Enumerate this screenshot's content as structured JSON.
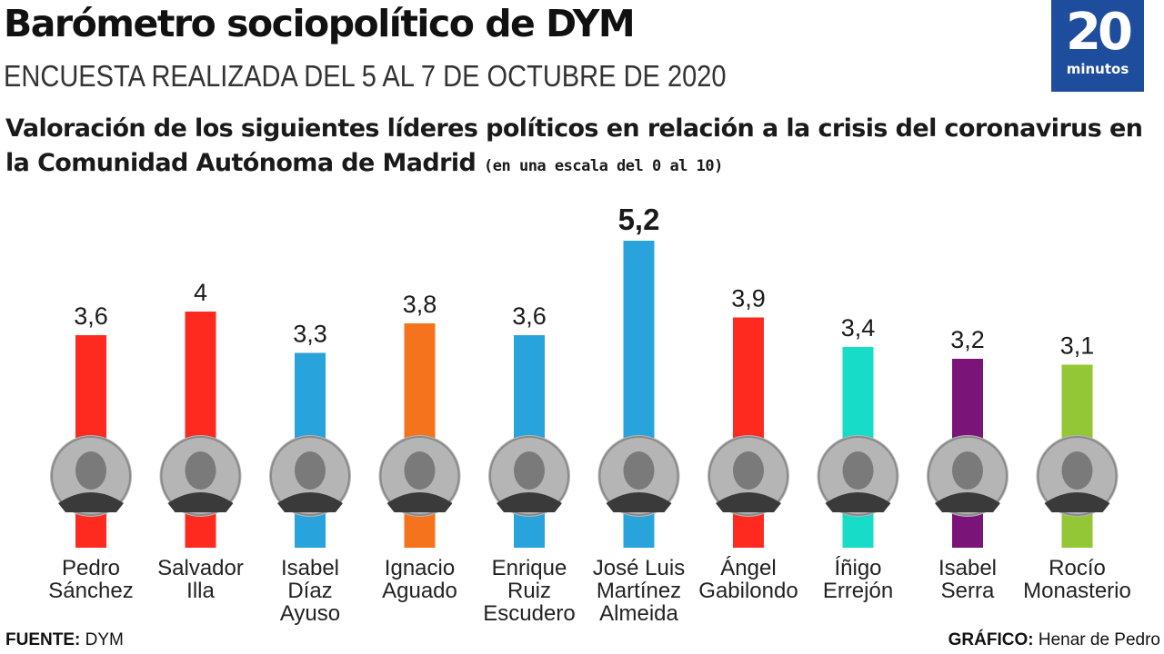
{
  "header": {
    "title": "Barómetro sociopolítico de DYM",
    "subtitle": "ENCUESTA REALIZADA DEL 5 AL 7 DE OCTUBRE DE 2020"
  },
  "logo": {
    "number": "20",
    "word": "minutos",
    "color": "#1f4d9d"
  },
  "question": {
    "text": "Valoración de los siguientes líderes políticos en relación a la crisis del coronavirus en la Comunidad Autónoma de Madrid",
    "scale_note": "(en una escala del 0 al 10)"
  },
  "chart_data": {
    "type": "bar",
    "categories": [
      [
        "Pedro",
        "Sánchez"
      ],
      [
        "Salvador",
        "Illa"
      ],
      [
        "Isabel",
        "Díaz",
        "Ayuso"
      ],
      [
        "Ignacio",
        "Aguado"
      ],
      [
        "Enrique",
        "Ruiz",
        "Escudero"
      ],
      [
        "José Luis",
        "Martínez",
        "Almeida"
      ],
      [
        "Ángel",
        "Gabilondo"
      ],
      [
        "Íñigo",
        "Errejón"
      ],
      [
        "Isabel",
        "Serra"
      ],
      [
        "Rocío",
        "Monasterio"
      ]
    ],
    "values": [
      3.6,
      4,
      3.3,
      3.8,
      3.6,
      5.2,
      3.9,
      3.4,
      3.2,
      3.1
    ],
    "value_labels": [
      "3,6",
      "4",
      "3,3",
      "3,8",
      "3,6",
      "5,2",
      "3,9",
      "3,4",
      "3,2",
      "3,1"
    ],
    "colors": [
      "#ff2a1f",
      "#ff2a1f",
      "#29a3dc",
      "#f5731c",
      "#29a3dc",
      "#29a3dc",
      "#ff2a1f",
      "#17dcc7",
      "#7a1478",
      "#93c735"
    ],
    "highlight_index": 5,
    "ylim": [
      0,
      10
    ],
    "grid": false,
    "legend": "none"
  },
  "footer": {
    "source_label": "FUENTE:",
    "source_value": "DYM",
    "credit_label": "GRÁFICO:",
    "credit_value": "Henar de Pedro"
  }
}
